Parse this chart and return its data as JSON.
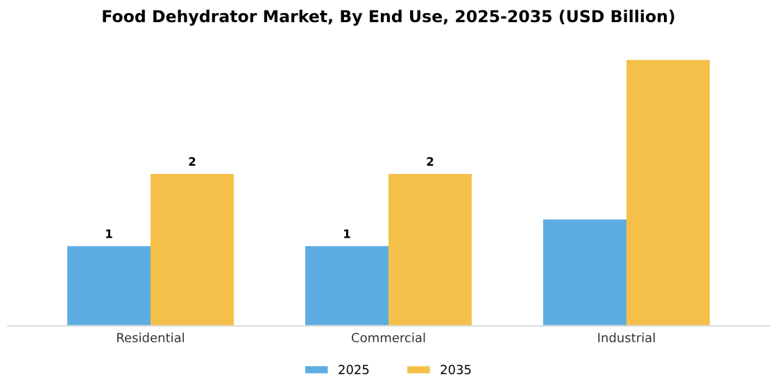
{
  "chart_data": {
    "type": "bar",
    "title": "Food Dehydrator Market, By End Use, 2025-2035 (USD Billion)",
    "categories": [
      "Residential",
      "Commercial",
      "Industrial"
    ],
    "series": [
      {
        "name": "2025",
        "color": "#5dade2",
        "values": [
          1.05,
          1.05,
          1.4
        ],
        "value_labels": [
          "1",
          "1",
          null
        ]
      },
      {
        "name": "2035",
        "color": "#f5c04a",
        "values": [
          2.0,
          2.0,
          3.5
        ],
        "value_labels": [
          "2",
          "2",
          null
        ]
      }
    ],
    "tick_labels": "x",
    "grid": false,
    "legend": "bottom"
  }
}
